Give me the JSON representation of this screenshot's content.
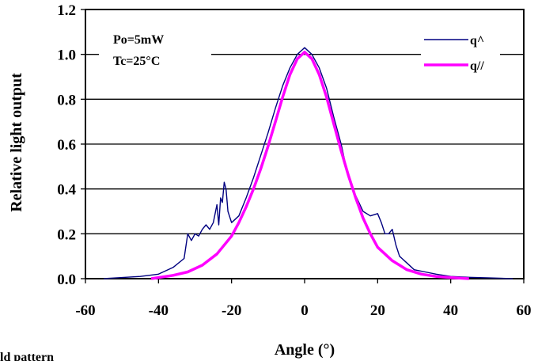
{
  "caption": "ld pattern",
  "chart_data": {
    "type": "line",
    "xlabel": "Angle (°)",
    "ylabel": "Relative light output",
    "xlim": [
      -60,
      60
    ],
    "ylim": [
      0,
      1.2
    ],
    "x_ticks": [
      "-60",
      "-40",
      "-20",
      "0",
      "20",
      "40",
      "60"
    ],
    "y_ticks": [
      "0.0",
      "0.2",
      "0.4",
      "0.6",
      "0.8",
      "1.0",
      "1.2"
    ],
    "grid": "horizontal",
    "annotations": [
      "Po=5mW",
      "Tc=25°C"
    ],
    "legend_position": "top-right",
    "series": [
      {
        "name": "q^",
        "color": "#000080",
        "x": [
          -55,
          -50,
          -45,
          -40,
          -36,
          -33,
          -32,
          -31,
          -30,
          -29,
          -28,
          -27,
          -26,
          -25,
          -24,
          -23.5,
          -23,
          -22.5,
          -22,
          -21.5,
          -21,
          -20,
          -18,
          -16,
          -14,
          -12,
          -10,
          -8,
          -6,
          -4,
          -2,
          0,
          2,
          4,
          6,
          8,
          10,
          12,
          14,
          16,
          18,
          20,
          21,
          22,
          23,
          24,
          25,
          26,
          28,
          30,
          33,
          36,
          40,
          45,
          50,
          57
        ],
        "y": [
          0.0,
          0.005,
          0.01,
          0.02,
          0.05,
          0.09,
          0.2,
          0.17,
          0.2,
          0.19,
          0.22,
          0.24,
          0.22,
          0.25,
          0.33,
          0.24,
          0.36,
          0.34,
          0.43,
          0.4,
          0.3,
          0.25,
          0.28,
          0.36,
          0.45,
          0.55,
          0.65,
          0.76,
          0.86,
          0.94,
          1.0,
          1.03,
          1.0,
          0.94,
          0.85,
          0.72,
          0.6,
          0.45,
          0.37,
          0.3,
          0.28,
          0.29,
          0.25,
          0.2,
          0.2,
          0.22,
          0.15,
          0.1,
          0.07,
          0.04,
          0.03,
          0.02,
          0.01,
          0.006,
          0.004,
          0.0
        ]
      },
      {
        "name": "q//",
        "color": "#ff00ff",
        "x": [
          -42,
          -40,
          -36,
          -32,
          -28,
          -24,
          -20,
          -18,
          -16,
          -14,
          -12,
          -10,
          -8,
          -6,
          -4,
          -2,
          0,
          2,
          4,
          6,
          8,
          10,
          12,
          14,
          16,
          18,
          20,
          24,
          28,
          32,
          36,
          40,
          45
        ],
        "y": [
          0.0,
          0.005,
          0.015,
          0.03,
          0.06,
          0.11,
          0.19,
          0.25,
          0.32,
          0.4,
          0.49,
          0.59,
          0.7,
          0.81,
          0.91,
          0.98,
          1.01,
          0.98,
          0.91,
          0.81,
          0.69,
          0.57,
          0.46,
          0.36,
          0.27,
          0.2,
          0.14,
          0.08,
          0.04,
          0.02,
          0.01,
          0.005,
          0.0
        ]
      }
    ]
  }
}
